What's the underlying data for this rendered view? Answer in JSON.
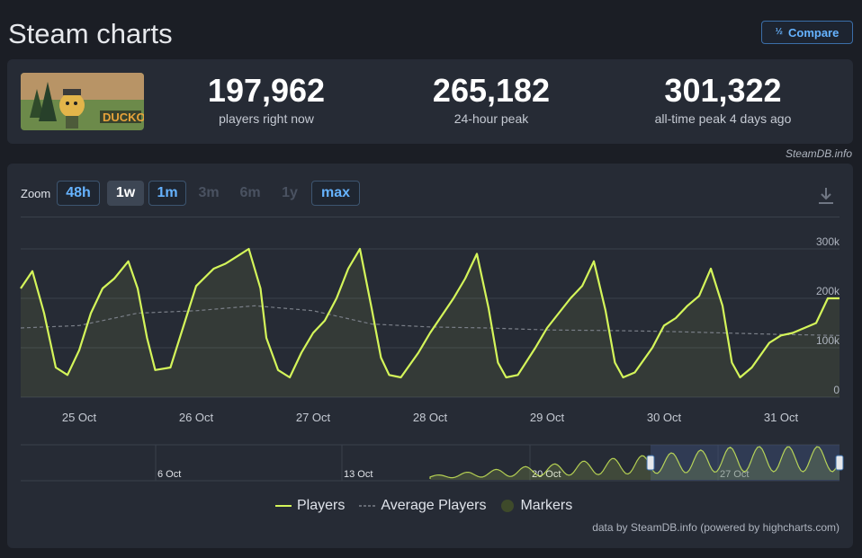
{
  "page": {
    "title": "Steam charts",
    "compare_label": "Compare",
    "compare_icon": "fraction-icon"
  },
  "stats": {
    "current": {
      "value": "197,962",
      "label": "players right now"
    },
    "peak24": {
      "value": "265,182",
      "label": "24-hour peak"
    },
    "alltime": {
      "value": "301,322",
      "label": "all-time peak 4 days ago"
    },
    "logo_text": "DUCKOV"
  },
  "credit_top": "SteamDB.info",
  "zoom": {
    "label": "Zoom",
    "buttons": [
      {
        "label": "48h",
        "state": "active"
      },
      {
        "label": "1w",
        "state": "selected"
      },
      {
        "label": "1m",
        "state": "active"
      },
      {
        "label": "3m",
        "state": "disabled"
      },
      {
        "label": "6m",
        "state": "disabled"
      },
      {
        "label": "1y",
        "state": "disabled"
      },
      {
        "label": "max",
        "state": "active"
      }
    ]
  },
  "legend": {
    "players": "Players",
    "average": "Average Players",
    "markers": "Markers"
  },
  "credit_bottom": "data by SteamDB.info (powered by highcharts.com)",
  "colors": {
    "players": "#d4f55a",
    "average": "#7a7f88",
    "markers": "#3e4a2a",
    "navigator_window": "#3e4f7a"
  },
  "chart_data": {
    "type": "line",
    "xlabel": "",
    "ylabel": "",
    "ylim": [
      0,
      300000
    ],
    "yticks": [
      "0",
      "100k",
      "200k",
      "300k"
    ],
    "xticks": [
      "25 Oct",
      "26 Oct",
      "27 Oct",
      "28 Oct",
      "29 Oct",
      "30 Oct",
      "31 Oct"
    ],
    "series": [
      {
        "name": "Players",
        "x": [
          24.5,
          24.6,
          24.7,
          24.8,
          24.9,
          25.0,
          25.1,
          25.2,
          25.3,
          25.42,
          25.5,
          25.58,
          25.65,
          25.78,
          25.9,
          26.0,
          26.15,
          26.25,
          26.35,
          26.45,
          26.55,
          26.6,
          26.7,
          26.8,
          26.9,
          27.0,
          27.1,
          27.2,
          27.3,
          27.4,
          27.5,
          27.58,
          27.65,
          27.75,
          27.9,
          28.0,
          28.1,
          28.2,
          28.3,
          28.4,
          28.5,
          28.58,
          28.65,
          28.75,
          28.9,
          29.0,
          29.1,
          29.2,
          29.3,
          29.4,
          29.5,
          29.58,
          29.65,
          29.75,
          29.9,
          30.0,
          30.1,
          30.2,
          30.3,
          30.4,
          30.5,
          30.58,
          30.65,
          30.75,
          30.9,
          31.0,
          31.1,
          31.2,
          31.3,
          31.4,
          31.5
        ],
        "values": [
          220000,
          255000,
          170000,
          60000,
          45000,
          95000,
          170000,
          220000,
          240000,
          275000,
          220000,
          120000,
          55000,
          60000,
          150000,
          225000,
          260000,
          270000,
          285000,
          300000,
          220000,
          120000,
          55000,
          40000,
          90000,
          130000,
          155000,
          200000,
          260000,
          300000,
          180000,
          80000,
          45000,
          40000,
          90000,
          130000,
          165000,
          200000,
          240000,
          290000,
          180000,
          70000,
          40000,
          45000,
          100000,
          140000,
          170000,
          200000,
          225000,
          275000,
          175000,
          70000,
          40000,
          50000,
          100000,
          145000,
          160000,
          185000,
          205000,
          260000,
          185000,
          70000,
          40000,
          60000,
          110000,
          125000,
          130000,
          140000,
          150000,
          200000,
          200000
        ]
      },
      {
        "name": "Average Players",
        "x": [
          24.5,
          25.0,
          25.5,
          26.0,
          26.5,
          27.0,
          27.5,
          28.0,
          28.5,
          29.0,
          29.5,
          30.0,
          30.5,
          31.0,
          31.5
        ],
        "values": [
          140000,
          145000,
          170000,
          175000,
          185000,
          175000,
          148000,
          142000,
          140000,
          136000,
          135000,
          133000,
          130000,
          127000,
          125000
        ]
      }
    ],
    "navigator": {
      "labels": [
        "6 Oct",
        "13 Oct",
        "20 Oct",
        "27 Oct"
      ],
      "window": [
        "24 Oct",
        "31 Oct"
      ]
    }
  }
}
